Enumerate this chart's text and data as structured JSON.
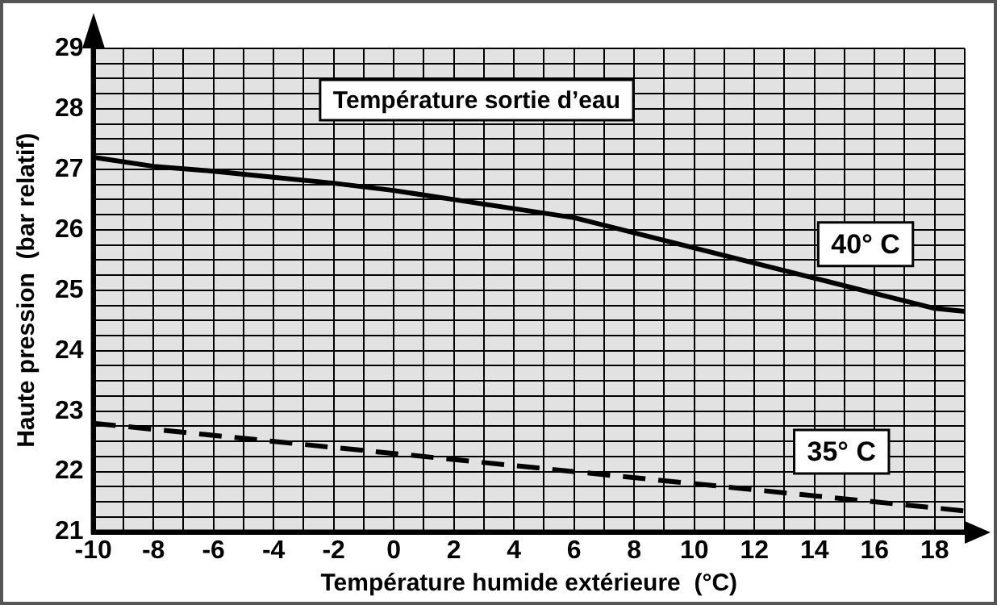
{
  "chart_data": {
    "type": "line",
    "title": "Température sortie d’eau",
    "xlabel": "Température humide extérieure  (°C)",
    "ylabel": "Haute pression  (bar relatif)",
    "x": [
      -10,
      -8,
      -6,
      -4,
      -2,
      0,
      2,
      4,
      6,
      8,
      10,
      12,
      14,
      16,
      18,
      19
    ],
    "series": [
      {
        "name": "40° C",
        "color": "#000000",
        "line_style": "solid",
        "values": [
          27.2,
          27.05,
          26.97,
          26.87,
          26.77,
          26.65,
          26.5,
          26.35,
          26.2,
          25.95,
          25.7,
          25.45,
          25.2,
          24.95,
          24.7,
          24.65
        ]
      },
      {
        "name": "35° C",
        "color": "#000000",
        "line_style": "dashed",
        "x": [
          -10,
          19
        ],
        "values": [
          22.8,
          21.35
        ]
      }
    ],
    "xlim": [
      -10,
      19
    ],
    "xticks": [
      -10,
      {
        "value": -9,
        "label": null
      },
      -8,
      {
        "value": -7,
        "label": null
      },
      -6,
      {
        "value": -5,
        "label": null
      },
      -4,
      {
        "value": -3,
        "label": null
      },
      -2,
      {
        "value": -1,
        "label": null
      },
      0,
      {
        "value": 1,
        "label": null
      },
      2,
      {
        "value": 3,
        "label": null
      },
      4,
      {
        "value": 5,
        "label": null
      },
      6,
      {
        "value": 7,
        "label": null
      },
      8,
      {
        "value": 9,
        "label": null
      },
      10,
      {
        "value": 11,
        "label": null
      },
      12,
      {
        "value": 13,
        "label": null
      },
      14,
      {
        "value": 15,
        "label": null
      },
      16,
      {
        "value": 17,
        "label": null
      },
      18,
      {
        "value": 19,
        "label": null
      }
    ],
    "ylim": [
      21,
      29
    ],
    "yticks": [
      21,
      {
        "value": 21.25,
        "label": null
      },
      {
        "value": 21.5,
        "label": null
      },
      {
        "value": 21.75,
        "label": null
      },
      22,
      {
        "value": 22.25,
        "label": null
      },
      {
        "value": 22.5,
        "label": null
      },
      {
        "value": 22.75,
        "label": null
      },
      23,
      {
        "value": 23.25,
        "label": null
      },
      {
        "value": 23.5,
        "label": null
      },
      {
        "value": 23.75,
        "label": null
      },
      24,
      {
        "value": 24.25,
        "label": null
      },
      {
        "value": 24.5,
        "label": null
      },
      {
        "value": 24.75,
        "label": null
      },
      25,
      {
        "value": 25.25,
        "label": null
      },
      {
        "value": 25.5,
        "label": null
      },
      {
        "value": 25.75,
        "label": null
      },
      26,
      {
        "value": 26.25,
        "label": null
      },
      {
        "value": 26.5,
        "label": null
      },
      {
        "value": 26.75,
        "label": null
      },
      27,
      {
        "value": 27.25,
        "label": null
      },
      {
        "value": 27.5,
        "label": null
      },
      {
        "value": 27.75,
        "label": null
      },
      28,
      {
        "value": 28.25,
        "label": null
      },
      {
        "value": 28.5,
        "label": null
      },
      {
        "value": 28.75,
        "label": null
      },
      29
    ],
    "grid": true,
    "legend": false,
    "marker": "none"
  }
}
